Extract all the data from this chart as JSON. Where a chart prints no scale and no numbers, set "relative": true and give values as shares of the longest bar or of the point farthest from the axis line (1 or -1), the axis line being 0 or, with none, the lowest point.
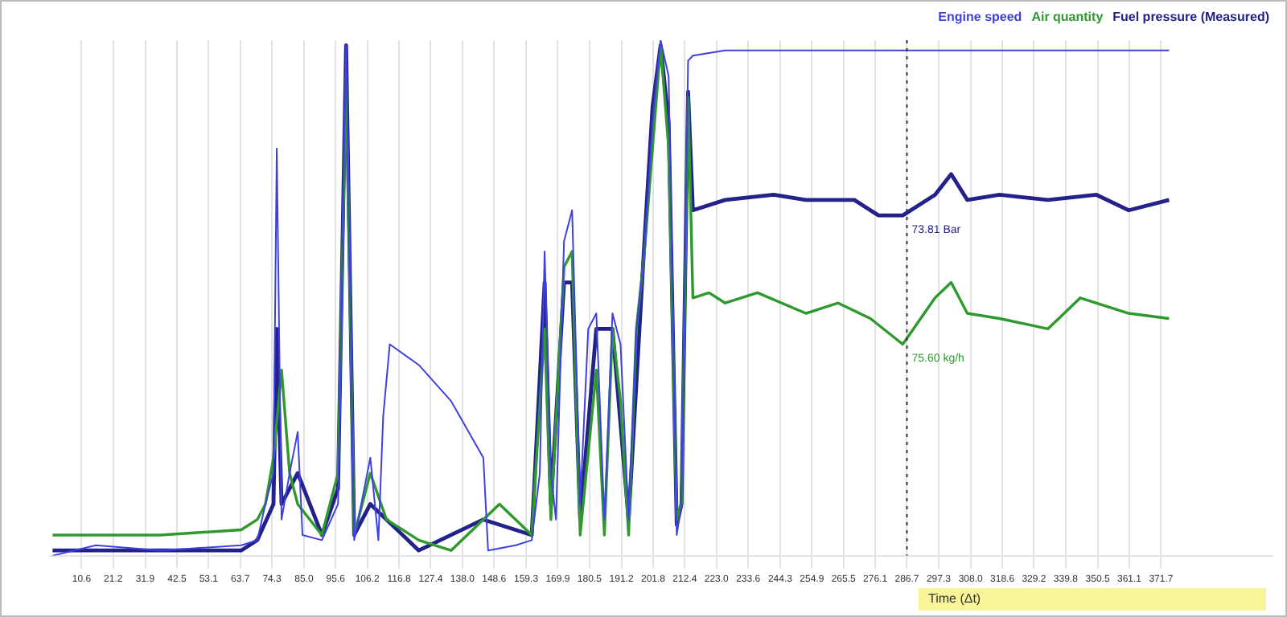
{
  "chart_data": {
    "type": "line",
    "relative": true,
    "xlabel": "Time (Δt)",
    "xlim": [
      0,
      409
    ],
    "xticks": [
      10.6,
      21.2,
      31.9,
      42.5,
      53.1,
      63.7,
      74.3,
      {
        "value": 85,
        "label": "85.0"
      },
      95.6,
      106.2,
      116.8,
      127.4,
      {
        "value": 138,
        "label": "138.0"
      },
      148.6,
      159.3,
      169.9,
      180.5,
      191.2,
      201.8,
      212.4,
      {
        "value": 223,
        "label": "223.0"
      },
      233.6,
      244.3,
      254.9,
      265.5,
      276.1,
      286.7,
      297.3,
      {
        "value": 308,
        "label": "308.0"
      },
      318.6,
      329.2,
      339.8,
      350.5,
      361.1,
      371.7
    ],
    "grid": true,
    "legend": "top right",
    "marker": "none",
    "line_style": "solid",
    "series": [
      {
        "name": "Engine speed",
        "color": "#4040e0",
        "x": [
          0.9,
          15.4,
          37.0,
          64.0,
          69.4,
          72.1,
          74.8,
          75.9,
          77.5,
          80.2,
          82.9,
          84.5,
          91.0,
          96.4,
          99.1,
          101.8,
          107.2,
          109.9,
          111.5,
          113.7,
          123.4,
          134.2,
          145.0,
          146.6,
          155.8,
          161.2,
          163.9,
          165.5,
          167.6,
          169.3,
          172.0,
          174.7,
          177.4,
          180.1,
          182.8,
          185.5,
          188.2,
          190.9,
          193.6,
          196.2,
          198.9,
          201.6,
          204.3,
          207.0,
          209.7,
          211.3,
          213.5,
          215.1,
          225.9,
          252.9,
          279.9,
          306.9,
          333.9,
          360.9,
          374.4
        ],
        "values": [
          0,
          0.02,
          0.01,
          0.02,
          0.03,
          0.1,
          0.16,
          0.79,
          0.07,
          0.16,
          0.24,
          0.04,
          0.03,
          0.1,
          0.99,
          0.03,
          0.19,
          0.03,
          0.27,
          0.41,
          0.37,
          0.3,
          0.19,
          0.01,
          0.02,
          0.03,
          0.16,
          0.59,
          0.16,
          0.07,
          0.61,
          0.67,
          0.1,
          0.44,
          0.47,
          0.07,
          0.47,
          0.41,
          0.07,
          0.44,
          0.59,
          0.84,
          1.0,
          0.93,
          0.04,
          0.1,
          0.96,
          0.97,
          0.98,
          0.98,
          0.98,
          0.98,
          0.98,
          0.98,
          0.98
        ]
      },
      {
        "name": "Air quantity",
        "color": "#2e9a2e",
        "x": [
          0.9,
          37.0,
          64.0,
          69.4,
          72.1,
          74.8,
          77.5,
          80.2,
          82.9,
          91.0,
          96.4,
          99.1,
          101.8,
          107.2,
          112.6,
          123.4,
          134.2,
          139.6,
          145.0,
          150.4,
          155.8,
          161.2,
          165.5,
          167.6,
          172.0,
          174.7,
          177.4,
          182.8,
          185.5,
          188.2,
          190.9,
          193.6,
          196.2,
          198.9,
          201.6,
          204.3,
          207.0,
          209.7,
          211.3,
          213.5,
          215.1,
          220.5,
          225.9,
          236.7,
          252.9,
          263.7,
          274.5,
          285.3,
          296.1,
          301.5,
          306.9,
          317.7,
          333.9,
          344.7,
          360.9,
          374.4
        ],
        "values": [
          0.04,
          0.04,
          0.05,
          0.07,
          0.1,
          0.19,
          0.36,
          0.16,
          0.1,
          0.04,
          0.16,
          0.93,
          0.04,
          0.16,
          0.07,
          0.03,
          0.01,
          0.04,
          0.07,
          0.1,
          0.07,
          0.04,
          0.44,
          0.07,
          0.56,
          0.59,
          0.04,
          0.36,
          0.04,
          0.44,
          0.3,
          0.04,
          0.44,
          0.59,
          0.79,
          0.99,
          0.79,
          0.07,
          0.1,
          0.89,
          0.5,
          0.51,
          0.49,
          0.51,
          0.47,
          0.49,
          0.46,
          0.41,
          0.5,
          0.53,
          0.47,
          0.46,
          0.44,
          0.5,
          0.47,
          0.46
        ]
      },
      {
        "name": "Fuel pressure (Measured)",
        "color": "#22228a",
        "x": [
          0.9,
          37.0,
          64.0,
          69.4,
          74.8,
          75.9,
          77.5,
          82.9,
          91.0,
          96.4,
          99.1,
          101.8,
          107.2,
          123.4,
          145.0,
          161.2,
          165.5,
          167.6,
          172.0,
          174.7,
          177.4,
          182.8,
          188.2,
          193.6,
          198.9,
          201.6,
          204.3,
          207.0,
          209.7,
          211.3,
          213.5,
          215.1,
          225.9,
          242.1,
          252.9,
          269.1,
          277.2,
          285.3,
          296.1,
          301.5,
          306.9,
          317.7,
          333.9,
          350.1,
          360.9,
          374.4
        ],
        "values": [
          0.01,
          0.01,
          0.01,
          0.03,
          0.1,
          0.44,
          0.1,
          0.16,
          0.04,
          0.13,
          0.99,
          0.04,
          0.1,
          0.01,
          0.07,
          0.04,
          0.53,
          0.1,
          0.53,
          0.53,
          0.07,
          0.44,
          0.44,
          0.07,
          0.61,
          0.87,
          0.99,
          0.84,
          0.06,
          0.1,
          0.9,
          0.67,
          0.69,
          0.7,
          0.69,
          0.69,
          0.66,
          0.66,
          0.7,
          0.74,
          0.69,
          0.7,
          0.69,
          0.7,
          0.67,
          0.69
        ]
      }
    ],
    "ref_lines": [
      {
        "axis": "x",
        "value": 286.7,
        "color": "#333333",
        "line_style": "dotted"
      }
    ],
    "annotations": [
      {
        "text": "73.81 Bar",
        "x": 286.7,
        "y": 0.66
      },
      {
        "text": "75.60 kg/h",
        "x": 286.7,
        "y": 0.41
      }
    ]
  }
}
